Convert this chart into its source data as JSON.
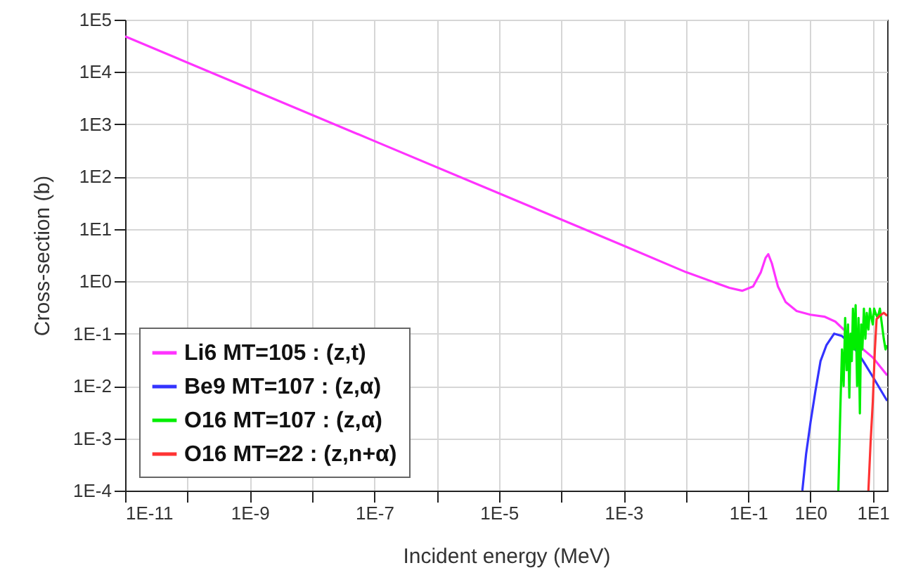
{
  "chart_data": {
    "type": "line",
    "xlabel": "Incident energy (MeV)",
    "ylabel": "Cross-section (b)",
    "log": "xy",
    "grid": true,
    "legend": "bottom left",
    "marker": "none",
    "line_style": "solid",
    "xlim": [
      1e-11,
      17
    ],
    "ylim": [
      0.0001,
      100000
    ],
    "xticks": [
      {
        "value": 1e-11,
        "label": "1E-11"
      },
      {
        "value": 1e-10,
        "label": null
      },
      {
        "value": 1e-09,
        "label": "1E-9"
      },
      {
        "value": 1e-08,
        "label": null
      },
      {
        "value": 1e-07,
        "label": "1E-7"
      },
      {
        "value": 1e-06,
        "label": null
      },
      {
        "value": 1e-05,
        "label": "1E-5"
      },
      {
        "value": 0.0001,
        "label": null
      },
      {
        "value": 0.001,
        "label": "1E-3"
      },
      {
        "value": 0.01,
        "label": null
      },
      {
        "value": 0.1,
        "label": "1E-1"
      },
      {
        "value": 1,
        "label": "1E0"
      },
      {
        "value": 10,
        "label": "1E1"
      }
    ],
    "yticks": [
      {
        "value": 0.0001,
        "label": "1E-4"
      },
      {
        "value": 0.001,
        "label": "1E-3"
      },
      {
        "value": 0.01,
        "label": "1E-2"
      },
      {
        "value": 0.1,
        "label": "1E-1"
      },
      {
        "value": 1,
        "label": "1E0"
      },
      {
        "value": 10,
        "label": "1E1"
      },
      {
        "value": 100,
        "label": "1E2"
      },
      {
        "value": 1000,
        "label": "1E3"
      },
      {
        "value": 10000,
        "label": "1E4"
      },
      {
        "value": 100000,
        "label": "1E5"
      }
    ],
    "series": [
      {
        "name": "Li6 MT=105 : (z,t)",
        "color": "#ff33ff",
        "x": [
          1e-11,
          1e-09,
          1e-07,
          1e-05,
          0.001,
          0.01,
          0.05,
          0.08,
          0.12,
          0.16,
          0.19,
          0.21,
          0.24,
          0.3,
          0.4,
          0.6,
          1,
          1.7,
          2.5,
          4,
          7,
          10,
          17
        ],
        "values": [
          48000,
          4800,
          480,
          48,
          4.8,
          1.5,
          0.75,
          0.66,
          0.8,
          1.5,
          2.8,
          3.3,
          2.2,
          0.8,
          0.4,
          0.27,
          0.23,
          0.21,
          0.17,
          0.1,
          0.05,
          0.035,
          0.016
        ]
      },
      {
        "name": "Be9 MT=107 : (z,α)",
        "color": "#3333ff",
        "x": [
          0.74,
          0.85,
          1.0,
          1.2,
          1.45,
          1.8,
          2.4,
          3.2,
          4.9,
          7,
          10,
          17
        ],
        "values": [
          0.0001,
          0.0005,
          0.002,
          0.008,
          0.03,
          0.06,
          0.1,
          0.09,
          0.056,
          0.03,
          0.015,
          0.0052
        ]
      },
      {
        "name": "O16 MT=107 : (z,α)",
        "color": "#00ee00",
        "x": [
          2.8,
          3.0,
          3.2,
          3.4,
          3.6,
          3.8,
          4.0,
          4.2,
          4.4,
          4.6,
          4.8,
          5.0,
          5.3,
          5.6,
          5.9,
          6.2,
          6.5,
          6.8,
          7.2,
          7.6,
          8.0,
          8.5,
          9.0,
          9.5,
          10,
          10.5,
          11,
          12,
          13,
          14,
          15,
          16,
          17
        ],
        "values": [
          0.0001,
          0.003,
          0.05,
          0.01,
          0.2,
          0.02,
          0.15,
          0.006,
          0.1,
          0.03,
          0.3,
          0.05,
          0.35,
          0.01,
          0.2,
          0.003,
          0.15,
          0.05,
          0.3,
          0.08,
          0.25,
          0.12,
          0.3,
          0.2,
          0.15,
          0.3,
          0.25,
          0.2,
          0.3,
          0.15,
          0.08,
          0.05,
          0.06
        ]
      },
      {
        "name": "O16 MT=22 : (z,n+α)",
        "color": "#ff3333",
        "x": [
          8.5,
          9.2,
          10,
          10.8,
          11.5,
          13,
          15,
          17
        ],
        "values": [
          0.0001,
          0.0008,
          0.005,
          0.05,
          0.19,
          0.22,
          0.25,
          0.22
        ]
      }
    ]
  }
}
